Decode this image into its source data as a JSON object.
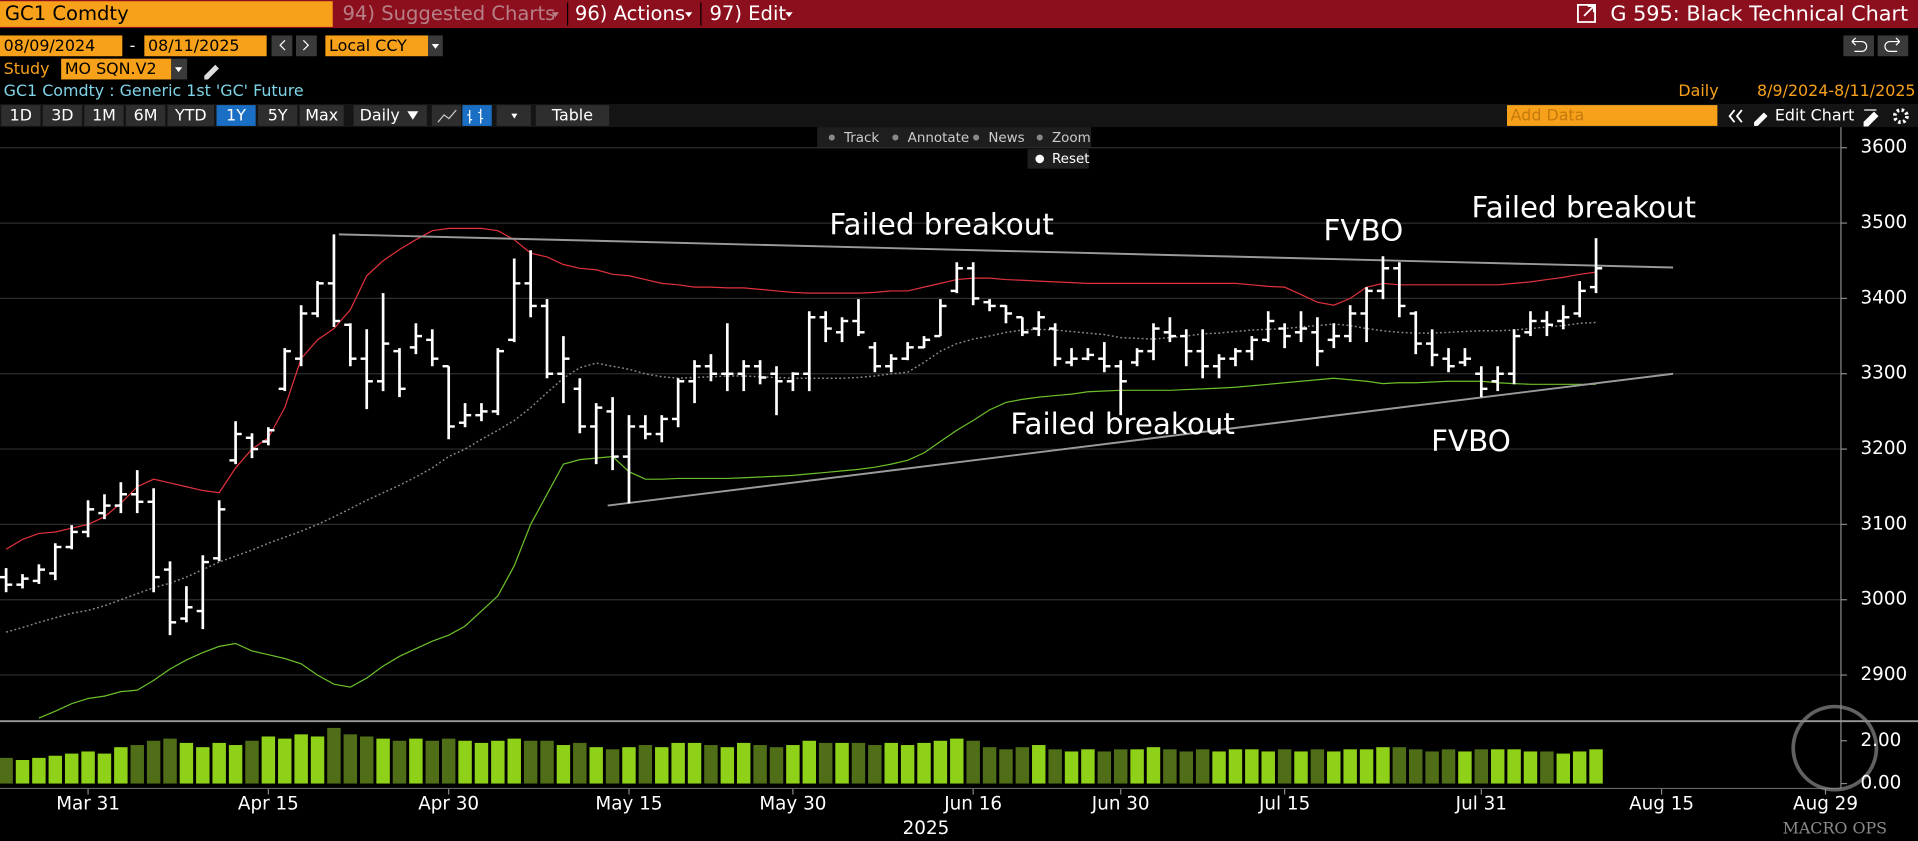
{
  "header": {
    "ticker": "GC1 Comdty",
    "menu": [
      "94) Suggested Charts",
      "96) Actions",
      "97) Edit"
    ],
    "title": "G 595: Black Technical Chart"
  },
  "controls": {
    "start_date": "08/09/2024",
    "date_separator": "-",
    "end_date": "08/11/2025",
    "currency": "Local CCY",
    "study_label": "Study",
    "study": "MO SQN.V2",
    "security": "GC1 Comdty : Generic 1st 'GC' Future",
    "frequency": "Daily",
    "range": "8/9/2024-8/11/2025",
    "periods": [
      "1D",
      "3D",
      "1M",
      "6M",
      "YTD",
      "1Y",
      "5Y",
      "Max"
    ],
    "active_period": "1Y",
    "interval": "Daily",
    "table": "Table",
    "add_data": "Add Data",
    "edit_chart": "Edit Chart",
    "tools": [
      "Track",
      "Annotate",
      "News",
      "Zoom"
    ],
    "reset": "Reset"
  },
  "watermark": "MACRO OPS",
  "chart_data": {
    "type": "ohlc",
    "categories": [
      null,
      null,
      null,
      null,
      null,
      "Mar 31",
      null,
      null,
      null,
      null,
      null,
      null,
      null,
      null,
      null,
      null,
      "Apr 15",
      null,
      null,
      null,
      null,
      null,
      null,
      null,
      null,
      null,
      null,
      "Apr 30",
      null,
      null,
      null,
      null,
      null,
      null,
      null,
      null,
      null,
      null,
      "May 15",
      null,
      null,
      null,
      null,
      null,
      null,
      null,
      null,
      null,
      "May 30",
      null,
      null,
      null,
      null,
      null,
      null,
      null,
      null,
      null,
      null,
      "Jun 16",
      null,
      null,
      null,
      null,
      null,
      null,
      null,
      null,
      "Jun 30",
      null,
      null,
      null,
      null,
      null,
      null,
      null,
      null,
      null,
      "Jul 15",
      null,
      null,
      null,
      null,
      null,
      null,
      null,
      null,
      null,
      null,
      null,
      "Jul 31",
      null,
      null,
      null,
      null,
      null,
      null,
      null,
      null,
      null,
      null,
      "Aug 15",
      null,
      null,
      null,
      null,
      null,
      null,
      null,
      null,
      null,
      "Aug 29",
      null
    ],
    "year_label": "2025",
    "ohlc": {
      "color": "#ffffff",
      "open": [
        3030,
        3020,
        3025,
        3035,
        3070,
        3090,
        3115,
        3125,
        3140,
        3130,
        3040,
        2975,
        2985,
        3055,
        3185,
        3215,
        3210,
        3280,
        3320,
        3380,
        3420,
        3365,
        3320,
        3290,
        3330,
        3335,
        3345,
        3310,
        3235,
        3245,
        3250,
        3345,
        3420,
        3390,
        3300,
        3280,
        3230,
        3250,
        3190,
        3230,
        3220,
        3240,
        3290,
        3310,
        3300,
        3300,
        3310,
        3300,
        3290,
        3300,
        3375,
        3355,
        3370,
        3335,
        3310,
        3320,
        3335,
        3350,
        3410,
        3440,
        3395,
        3390,
        3375,
        3360,
        3360,
        3315,
        3320,
        3320,
        3310,
        3315,
        3330,
        3355,
        3350,
        3330,
        3310,
        3320,
        3330,
        3345,
        3360,
        3355,
        3355,
        3345,
        3350,
        3380,
        3410,
        3440,
        3380,
        3340,
        3320,
        3315,
        3300,
        3290,
        3300,
        3355,
        3370,
        3370,
        3380,
        3415,
        null,
        null,
        null,
        null,
        null,
        null,
        null,
        null,
        null,
        null,
        null,
        null,
        null,
        null,
        null
      ],
      "high": [
        3042,
        3034,
        3047,
        3075,
        3099,
        3132,
        3140,
        3156,
        3172,
        3148,
        3051,
        3018,
        3059,
        3132,
        3237,
        3221,
        3229,
        3334,
        3391,
        3423,
        3485,
        3367,
        3359,
        3407,
        3334,
        3367,
        3359,
        3310,
        3261,
        3261,
        3334,
        3453,
        3464,
        3399,
        3350,
        3294,
        3261,
        3269,
        3245,
        3245,
        3245,
        3294,
        3318,
        3326,
        3367,
        3318,
        3318,
        3310,
        3302,
        3383,
        3383,
        3375,
        3399,
        3342,
        3326,
        3342,
        3350,
        3399,
        3448,
        3448,
        3399,
        3391,
        3375,
        3383,
        3367,
        3334,
        3334,
        3342,
        3318,
        3334,
        3367,
        3375,
        3359,
        3359,
        3326,
        3334,
        3350,
        3383,
        3367,
        3383,
        3375,
        3367,
        3391,
        3415,
        3456,
        3448,
        3383,
        3359,
        3334,
        3334,
        3310,
        3310,
        3359,
        3383,
        3383,
        3391,
        3423,
        3480,
        null,
        null,
        null,
        null,
        null,
        null,
        null,
        null,
        null,
        null,
        null,
        null,
        null,
        null,
        null
      ],
      "low": [
        3010,
        3015,
        3021,
        3026,
        3067,
        3083,
        3107,
        3115,
        3115,
        3010,
        2953,
        2970,
        2961,
        3051,
        3180,
        3188,
        3205,
        3277,
        3310,
        3375,
        3362,
        3310,
        3253,
        3277,
        3269,
        3326,
        3310,
        3213,
        3229,
        3237,
        3245,
        3342,
        3375,
        3294,
        3261,
        3221,
        3180,
        3172,
        3128,
        3213,
        3209,
        3229,
        3261,
        3290,
        3277,
        3277,
        3286,
        3245,
        3277,
        3277,
        3342,
        3342,
        3350,
        3302,
        3302,
        3318,
        3334,
        3350,
        3407,
        3391,
        3383,
        3367,
        3350,
        3350,
        3310,
        3310,
        3318,
        3302,
        3245,
        3310,
        3318,
        3342,
        3310,
        3294,
        3294,
        3310,
        3318,
        3342,
        3334,
        3342,
        3310,
        3334,
        3342,
        3342,
        3399,
        3375,
        3326,
        3310,
        3302,
        3310,
        3269,
        3277,
        3286,
        3350,
        3350,
        3359,
        3375,
        3407,
        null,
        null,
        null,
        null,
        null,
        null,
        null,
        null,
        null,
        null,
        null,
        null,
        null,
        null,
        null
      ],
      "close": [
        3020,
        3028,
        3040,
        3070,
        3090,
        3120,
        3125,
        3140,
        3130,
        3030,
        2970,
        2990,
        3050,
        3120,
        3220,
        3200,
        3225,
        3330,
        3380,
        3420,
        3370,
        3320,
        3290,
        3340,
        3280,
        3350,
        3320,
        3230,
        3245,
        3250,
        3330,
        3420,
        3390,
        3300,
        3320,
        3230,
        3255,
        3190,
        3230,
        3220,
        3240,
        3290,
        3310,
        3300,
        3300,
        3310,
        3295,
        3290,
        3300,
        3375,
        3360,
        3370,
        3355,
        3310,
        3320,
        3335,
        3345,
        3390,
        3440,
        3400,
        3390,
        3380,
        3355,
        3375,
        3320,
        3320,
        3325,
        3310,
        3290,
        3330,
        3360,
        3350,
        3330,
        3310,
        3320,
        3330,
        3345,
        3370,
        3350,
        3360,
        3330,
        3350,
        3380,
        3410,
        3440,
        3390,
        3340,
        3325,
        3310,
        3320,
        3280,
        3300,
        3350,
        3370,
        3365,
        3375,
        3410,
        3440,
        null,
        null,
        null,
        null,
        null,
        null,
        null,
        null,
        null,
        null,
        null,
        null,
        null,
        null,
        null
      ]
    },
    "lines": [
      {
        "color": "#e0323c",
        "dashed": false,
        "values": [
          3067,
          3080,
          3088,
          3090,
          3095,
          3100,
          3110,
          3128,
          3150,
          3160,
          3155,
          3150,
          3145,
          3142,
          3175,
          3200,
          3215,
          3255,
          3320,
          3345,
          3360,
          3385,
          3430,
          3450,
          3465,
          3478,
          3490,
          3493,
          3493,
          3493,
          3490,
          3478,
          3460,
          3455,
          3445,
          3440,
          3438,
          3432,
          3430,
          3425,
          3420,
          3418,
          3415,
          3415,
          3414,
          3414,
          3412,
          3410,
          3408,
          3407,
          3407,
          3407,
          3407,
          3408,
          3410,
          3410,
          3415,
          3420,
          3425,
          3427,
          3427,
          3425,
          3424,
          3423,
          3422,
          3421,
          3420,
          3420,
          3420,
          3420,
          3420,
          3420,
          3420,
          3420,
          3420,
          3420,
          3418,
          3416,
          3415,
          3405,
          3395,
          3391,
          3400,
          3415,
          3420,
          3418,
          3418,
          3418,
          3418,
          3418,
          3418,
          3418,
          3420,
          3422,
          3425,
          3428,
          3432,
          3435,
          null,
          null,
          null,
          null,
          null,
          null,
          null,
          null,
          null,
          null,
          null,
          null,
          null,
          null,
          null
        ]
      },
      {
        "color": "#6cbf2a",
        "dashed": false,
        "values": [
          null,
          null,
          2843,
          2852,
          2862,
          2869,
          2872,
          2878,
          2880,
          2893,
          2908,
          2920,
          2930,
          2938,
          2942,
          2932,
          2927,
          2922,
          2915,
          2900,
          2888,
          2884,
          2896,
          2912,
          2925,
          2935,
          2945,
          2953,
          2965,
          2985,
          3005,
          3045,
          3100,
          3140,
          3180,
          3186,
          3188,
          3190,
          3170,
          3160,
          3160,
          3161,
          3161,
          3161,
          3161,
          3162,
          3163,
          3164,
          3165,
          3167,
          3169,
          3171,
          3173,
          3176,
          3180,
          3185,
          3195,
          3210,
          3225,
          3238,
          3252,
          3262,
          3266,
          3269,
          3271,
          3273,
          3276,
          3277,
          3278,
          3278,
          3278,
          3278,
          3279,
          3280,
          3281,
          3282,
          3284,
          3286,
          3288,
          3290,
          3292,
          3294,
          3292,
          3290,
          3287,
          3288,
          3288,
          3289,
          3290,
          3290,
          3290,
          3288,
          3287,
          3286,
          3286,
          3286,
          3286,
          3286,
          null,
          null,
          null,
          null,
          null,
          null,
          null,
          null,
          null,
          null,
          null,
          null,
          null,
          null,
          null
        ]
      },
      {
        "color": "#8a8a8a",
        "dashed": true,
        "values": [
          2957,
          2963,
          2970,
          2976,
          2982,
          2986,
          2992,
          3000,
          3008,
          3016,
          3022,
          3030,
          3040,
          3050,
          3058,
          3066,
          3075,
          3083,
          3091,
          3100,
          3110,
          3121,
          3132,
          3142,
          3152,
          3163,
          3175,
          3190,
          3200,
          3213,
          3225,
          3238,
          3255,
          3275,
          3294,
          3308,
          3314,
          3310,
          3306,
          3300,
          3296,
          3294,
          3295,
          3296,
          3297,
          3297,
          3296,
          3295,
          3294,
          3294,
          3294,
          3294,
          3295,
          3297,
          3300,
          3302,
          3315,
          3330,
          3340,
          3346,
          3350,
          3355,
          3358,
          3359,
          3358,
          3356,
          3354,
          3352,
          3348,
          3347,
          3346,
          3348,
          3350,
          3353,
          3354,
          3356,
          3358,
          3359,
          3360,
          3362,
          3364,
          3366,
          3364,
          3360,
          3357,
          3355,
          3354,
          3354,
          3355,
          3356,
          3357,
          3357,
          3358,
          3360,
          3362,
          3364,
          3367,
          3368,
          null,
          null,
          null,
          null,
          null,
          null,
          null,
          null,
          null,
          null,
          null,
          null,
          null,
          null,
          null
        ]
      }
    ],
    "trendlines": [
      {
        "color": "#9a9a9a",
        "x": [
          20.3,
          101.7
        ],
        "y": [
          3485,
          3441
        ]
      },
      {
        "color": "#9a9a9a",
        "x": [
          36.7,
          101.7
        ],
        "y": [
          3125,
          3300
        ]
      }
    ],
    "annotations": [
      "Failed breakout",
      "FVBO",
      "Failed breakout",
      "Failed breakout",
      "FVBO"
    ],
    "ylim": [
      2842,
      3629
    ],
    "yticks": [
      2900,
      3000,
      3100,
      3200,
      3300,
      3400,
      3500,
      3600
    ],
    "grid": true,
    "volume": {
      "up_color": "#8fd118",
      "down_color": "#4f6e17",
      "values": [
        1.2,
        1.1,
        1.2,
        1.3,
        1.4,
        1.5,
        1.4,
        1.7,
        1.8,
        2.0,
        2.1,
        1.9,
        1.7,
        1.9,
        1.8,
        2.0,
        2.2,
        2.1,
        2.3,
        2.2,
        2.6,
        2.3,
        2.2,
        2.1,
        2.0,
        2.1,
        2.0,
        2.1,
        2.0,
        1.9,
        2.0,
        2.1,
        2.0,
        2.0,
        1.8,
        1.9,
        1.7,
        1.6,
        1.7,
        1.8,
        1.7,
        1.9,
        1.9,
        1.8,
        1.7,
        1.9,
        1.8,
        1.7,
        1.8,
        2.0,
        1.9,
        1.9,
        1.9,
        1.8,
        1.9,
        1.8,
        1.9,
        2.0,
        2.1,
        2.0,
        1.7,
        1.6,
        1.7,
        1.8,
        1.6,
        1.5,
        1.6,
        1.5,
        1.6,
        1.6,
        1.7,
        1.6,
        1.5,
        1.6,
        1.5,
        1.6,
        1.6,
        1.5,
        1.6,
        1.5,
        1.6,
        1.5,
        1.6,
        1.6,
        1.7,
        1.7,
        1.6,
        1.5,
        1.6,
        1.5,
        1.6,
        1.6,
        1.6,
        1.5,
        1.5,
        1.4,
        1.5,
        1.6,
        null,
        null,
        null,
        null,
        null,
        null,
        null,
        null,
        null,
        null,
        null,
        null,
        null,
        null,
        null
      ],
      "ylim": [
        0,
        2.8
      ],
      "yticks": [
        {
          "value": 0,
          "label": "0.00"
        },
        {
          "value": 2,
          "label": "2.00"
        }
      ]
    }
  }
}
